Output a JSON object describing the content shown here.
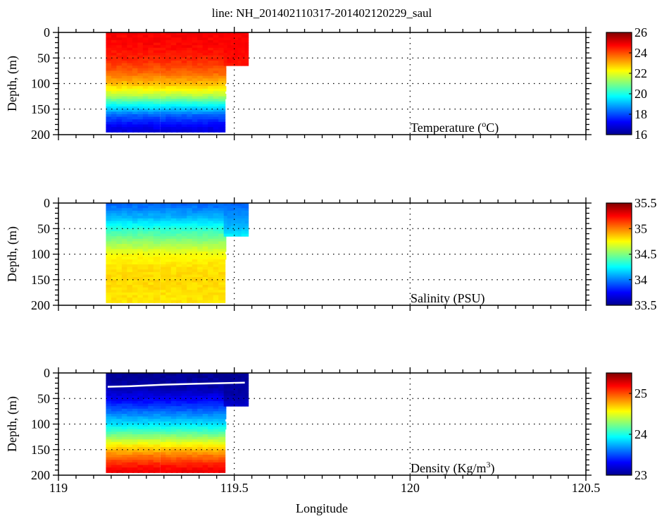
{
  "chart_data": [
    {
      "type": "heatmap",
      "title": "line: NH_201402110317-201402120229_saul",
      "xlabel": "Longitude",
      "ylabel": "Depth, (m)",
      "annotation": "Temperature (",
      "annotation_unit_sup": "o",
      "annotation_unit_tail": "C)",
      "xlim": [
        119,
        120.5
      ],
      "ylim": [
        200,
        0
      ],
      "x_ticks": [
        "119",
        "119.5",
        "120",
        "120.5"
      ],
      "y_ticks": [
        "0",
        "50",
        "100",
        "150",
        "200"
      ],
      "colorbar": {
        "range": [
          16,
          26
        ],
        "ticks": [
          "26",
          "24",
          "22",
          "20",
          "18",
          "16"
        ]
      },
      "profile_depths": [
        0,
        25,
        50,
        75,
        100,
        120,
        140,
        160,
        180,
        195
      ],
      "profile_values": [
        24.8,
        24.7,
        24.4,
        23.8,
        22.8,
        21.6,
        19.8,
        18.2,
        17.2,
        16.8
      ]
    },
    {
      "type": "heatmap",
      "xlabel": "",
      "ylabel": "Depth, (m)",
      "annotation": "Salinity (PSU)",
      "xlim": [
        119,
        120.5
      ],
      "ylim": [
        200,
        0
      ],
      "y_ticks": [
        "0",
        "50",
        "100",
        "150",
        "200"
      ],
      "colorbar": {
        "range": [
          33.5,
          35.5
        ],
        "ticks": [
          "35.5",
          "35",
          "34.5",
          "34",
          "33.5"
        ]
      },
      "profile_depths": [
        0,
        25,
        50,
        75,
        100,
        120,
        140,
        160,
        180,
        195
      ],
      "profile_values": [
        33.95,
        34.1,
        34.35,
        34.55,
        34.75,
        34.8,
        34.82,
        34.82,
        34.8,
        34.8
      ]
    },
    {
      "type": "heatmap",
      "xlabel": "Longitude",
      "ylabel": "Depth, (m)",
      "annotation": "Density (Kg/m",
      "annotation_unit_sup": "3",
      "annotation_unit_tail": ")",
      "xlim": [
        119,
        120.5
      ],
      "ylim": [
        200,
        0
      ],
      "x_ticks": [
        "119",
        "119.5",
        "120",
        "120.5"
      ],
      "y_ticks": [
        "0",
        "50",
        "100",
        "150",
        "200"
      ],
      "colorbar": {
        "range": [
          23,
          25.5
        ],
        "ticks": [
          "25",
          "24",
          "23"
        ]
      },
      "colorbar_tick_values": [
        25,
        24,
        23
      ],
      "profile_depths": [
        0,
        25,
        50,
        75,
        100,
        120,
        140,
        160,
        180,
        195
      ],
      "profile_values": [
        23.05,
        23.1,
        23.3,
        23.6,
        23.9,
        24.25,
        24.6,
        24.9,
        25.15,
        25.25
      ],
      "mixed_layer_depth_line": {
        "lon": [
          119.14,
          119.2,
          119.3,
          119.4,
          119.53
        ],
        "depth": [
          27,
          26,
          23,
          21,
          19
        ]
      }
    }
  ],
  "casts": {
    "deep_lons": [
      119.145,
      119.16,
      119.175,
      119.19,
      119.205,
      119.22,
      119.235,
      119.25,
      119.265,
      119.28,
      119.3,
      119.315,
      119.33,
      119.345,
      119.36,
      119.375,
      119.39,
      119.405,
      119.42,
      119.435,
      119.45,
      119.465
    ],
    "deep_max_depth": 195,
    "shallow_lons_range": [
      119.47,
      119.54
    ],
    "shallow_max_depth": 65
  }
}
